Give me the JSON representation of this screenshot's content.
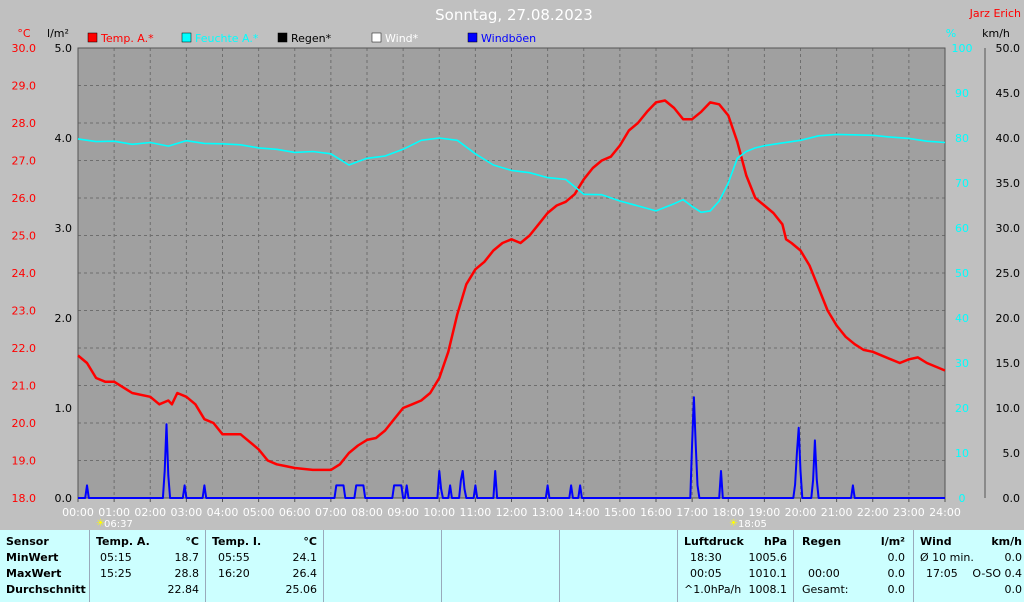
{
  "title": "Sonntag, 27.08.2023",
  "author": "Jarz Erich",
  "units": {
    "left_outer": "°C",
    "left_inner": "l/m²",
    "right_inner": "%",
    "right_outer": "km/h"
  },
  "legend": [
    {
      "label": "Temp. A.*",
      "color": "#ff0000"
    },
    {
      "label": "Feuchte A.*",
      "color": "#00ffff"
    },
    {
      "label": "Regen*",
      "color": "#000000"
    },
    {
      "label": "Wind*",
      "color": "#ffffff"
    },
    {
      "label": "Windböen",
      "color": "#0000ff"
    }
  ],
  "markers": {
    "sunrise": "06:37",
    "sunset": "18:05"
  },
  "chart_data": {
    "type": "line",
    "x_ticks": [
      "00:00",
      "01:00",
      "02:00",
      "03:00",
      "04:00",
      "05:00",
      "06:00",
      "07:00",
      "08:00",
      "09:00",
      "10:00",
      "11:00",
      "12:00",
      "13:00",
      "14:00",
      "15:00",
      "16:00",
      "17:00",
      "18:00",
      "19:00",
      "20:00",
      "21:00",
      "22:00",
      "23:00",
      "24:00"
    ],
    "axes": {
      "temp_c": {
        "ticks": [
          "18.0",
          "19.0",
          "20.0",
          "21.0",
          "22.0",
          "23.0",
          "24.0",
          "25.0",
          "26.0",
          "27.0",
          "28.0",
          "29.0",
          "30.0"
        ],
        "range": [
          18,
          30
        ]
      },
      "rain_lm2": {
        "ticks": [
          "0.0",
          "1.0",
          "2.0",
          "3.0",
          "4.0",
          "5.0"
        ],
        "range": [
          0,
          5
        ]
      },
      "humidity_pct": {
        "ticks": [
          "0",
          "10",
          "20",
          "30",
          "40",
          "50",
          "60",
          "70",
          "80",
          "90",
          "100"
        ],
        "range": [
          0,
          100
        ]
      },
      "wind_kmh": {
        "ticks": [
          "0.0",
          "5.0",
          "10.0",
          "15.0",
          "20.0",
          "25.0",
          "30.0",
          "35.0",
          "40.0",
          "45.0",
          "50.0"
        ],
        "range": [
          0,
          50
        ]
      }
    },
    "grid": true,
    "series": [
      {
        "name": "Temp. A.*",
        "color": "#ff0000",
        "axis": "temp_c",
        "points": [
          [
            0,
            21.8
          ],
          [
            0.25,
            21.6
          ],
          [
            0.5,
            21.2
          ],
          [
            0.75,
            21.1
          ],
          [
            1,
            21.1
          ],
          [
            1.5,
            20.8
          ],
          [
            2,
            20.7
          ],
          [
            2.25,
            20.5
          ],
          [
            2.5,
            20.6
          ],
          [
            2.6,
            20.5
          ],
          [
            2.75,
            20.8
          ],
          [
            3,
            20.7
          ],
          [
            3.25,
            20.5
          ],
          [
            3.5,
            20.1
          ],
          [
            3.75,
            20.0
          ],
          [
            4,
            19.7
          ],
          [
            4.5,
            19.7
          ],
          [
            4.75,
            19.5
          ],
          [
            5,
            19.3
          ],
          [
            5.25,
            19.0
          ],
          [
            5.5,
            18.9
          ],
          [
            5.75,
            18.85
          ],
          [
            6,
            18.8
          ],
          [
            6.5,
            18.75
          ],
          [
            7,
            18.75
          ],
          [
            7.25,
            18.9
          ],
          [
            7.5,
            19.2
          ],
          [
            7.75,
            19.4
          ],
          [
            8,
            19.55
          ],
          [
            8.25,
            19.6
          ],
          [
            8.5,
            19.8
          ],
          [
            8.75,
            20.1
          ],
          [
            9,
            20.4
          ],
          [
            9.25,
            20.5
          ],
          [
            9.5,
            20.6
          ],
          [
            9.75,
            20.8
          ],
          [
            10,
            21.2
          ],
          [
            10.25,
            21.9
          ],
          [
            10.5,
            22.9
          ],
          [
            10.75,
            23.7
          ],
          [
            11,
            24.1
          ],
          [
            11.25,
            24.3
          ],
          [
            11.5,
            24.6
          ],
          [
            11.75,
            24.8
          ],
          [
            12,
            24.9
          ],
          [
            12.25,
            24.8
          ],
          [
            12.5,
            25.0
          ],
          [
            12.75,
            25.3
          ],
          [
            13,
            25.6
          ],
          [
            13.25,
            25.8
          ],
          [
            13.5,
            25.9
          ],
          [
            13.75,
            26.1
          ],
          [
            14,
            26.5
          ],
          [
            14.25,
            26.8
          ],
          [
            14.5,
            27.0
          ],
          [
            14.75,
            27.1
          ],
          [
            15,
            27.4
          ],
          [
            15.25,
            27.8
          ],
          [
            15.5,
            28.0
          ],
          [
            15.75,
            28.3
          ],
          [
            16,
            28.55
          ],
          [
            16.25,
            28.6
          ],
          [
            16.5,
            28.4
          ],
          [
            16.75,
            28.1
          ],
          [
            17,
            28.1
          ],
          [
            17.25,
            28.3
          ],
          [
            17.5,
            28.55
          ],
          [
            17.75,
            28.5
          ],
          [
            18,
            28.2
          ],
          [
            18.25,
            27.5
          ],
          [
            18.5,
            26.6
          ],
          [
            18.75,
            26.0
          ],
          [
            19,
            25.8
          ],
          [
            19.25,
            25.6
          ],
          [
            19.5,
            25.3
          ],
          [
            19.6,
            24.9
          ],
          [
            19.75,
            24.8
          ],
          [
            20,
            24.6
          ],
          [
            20.25,
            24.2
          ],
          [
            20.5,
            23.6
          ],
          [
            20.75,
            23.0
          ],
          [
            21,
            22.6
          ],
          [
            21.25,
            22.3
          ],
          [
            21.5,
            22.1
          ],
          [
            21.75,
            21.95
          ],
          [
            22,
            21.9
          ],
          [
            22.5,
            21.7
          ],
          [
            22.75,
            21.6
          ],
          [
            23,
            21.7
          ],
          [
            23.25,
            21.75
          ],
          [
            23.5,
            21.6
          ],
          [
            24,
            21.4
          ]
        ]
      },
      {
        "name": "Feuchte A.*",
        "color": "#00ffff",
        "axis": "humidity_pct",
        "points": [
          [
            0,
            79.8
          ],
          [
            0.5,
            79.2
          ],
          [
            1,
            79.3
          ],
          [
            1.5,
            78.6
          ],
          [
            2,
            79.0
          ],
          [
            2.5,
            78.2
          ],
          [
            3,
            79.4
          ],
          [
            3.5,
            78.8
          ],
          [
            4,
            78.7
          ],
          [
            4.5,
            78.5
          ],
          [
            5,
            77.8
          ],
          [
            5.5,
            77.5
          ],
          [
            6,
            76.8
          ],
          [
            6.5,
            77.0
          ],
          [
            7,
            76.5
          ],
          [
            7.5,
            74.0
          ],
          [
            8,
            75.5
          ],
          [
            8.5,
            76.0
          ],
          [
            9,
            77.5
          ],
          [
            9.5,
            79.5
          ],
          [
            10,
            80.0
          ],
          [
            10.5,
            79.5
          ],
          [
            11,
            76.5
          ],
          [
            11.5,
            74.0
          ],
          [
            12,
            72.8
          ],
          [
            12.5,
            72.3
          ],
          [
            13,
            71.2
          ],
          [
            13.5,
            70.8
          ],
          [
            14,
            67.5
          ],
          [
            14.5,
            67.4
          ],
          [
            15,
            66.0
          ],
          [
            15.5,
            64.9
          ],
          [
            16,
            63.8
          ],
          [
            16.5,
            65.4
          ],
          [
            16.75,
            66.3
          ],
          [
            17,
            64.8
          ],
          [
            17.25,
            63.5
          ],
          [
            17.5,
            63.8
          ],
          [
            17.75,
            66.0
          ],
          [
            18,
            70.0
          ],
          [
            18.25,
            75.5
          ],
          [
            18.5,
            77.0
          ],
          [
            18.75,
            77.8
          ],
          [
            19,
            78.3
          ],
          [
            19.5,
            78.9
          ],
          [
            20,
            79.5
          ],
          [
            20.5,
            80.5
          ],
          [
            21,
            80.8
          ],
          [
            22,
            80.6
          ],
          [
            22.5,
            80.2
          ],
          [
            23,
            79.9
          ],
          [
            23.5,
            79.3
          ],
          [
            24,
            79.0
          ]
        ]
      },
      {
        "name": "Windböen",
        "color": "#0000ff",
        "axis": "wind_kmh",
        "points": [
          [
            0,
            0
          ],
          [
            0.2,
            0
          ],
          [
            0.25,
            1.4
          ],
          [
            0.3,
            0
          ],
          [
            2.35,
            0
          ],
          [
            2.4,
            3.0
          ],
          [
            2.45,
            8.2
          ],
          [
            2.5,
            2.5
          ],
          [
            2.55,
            0
          ],
          [
            2.9,
            0
          ],
          [
            2.95,
            1.4
          ],
          [
            3.0,
            0
          ],
          [
            3.45,
            0
          ],
          [
            3.5,
            1.4
          ],
          [
            3.55,
            0
          ],
          [
            7.1,
            0
          ],
          [
            7.15,
            1.4
          ],
          [
            7.35,
            1.4
          ],
          [
            7.4,
            0
          ],
          [
            7.65,
            0
          ],
          [
            7.7,
            1.4
          ],
          [
            7.9,
            1.4
          ],
          [
            7.95,
            0
          ],
          [
            8.7,
            0
          ],
          [
            8.75,
            1.4
          ],
          [
            8.95,
            1.4
          ],
          [
            9.0,
            0
          ],
          [
            9.05,
            0
          ],
          [
            9.1,
            1.4
          ],
          [
            9.15,
            0
          ],
          [
            9.95,
            0
          ],
          [
            10.0,
            3.0
          ],
          [
            10.05,
            1.0
          ],
          [
            10.1,
            0
          ],
          [
            10.25,
            0
          ],
          [
            10.3,
            1.4
          ],
          [
            10.35,
            0
          ],
          [
            10.55,
            0
          ],
          [
            10.6,
            2.0
          ],
          [
            10.65,
            3.0
          ],
          [
            10.7,
            1.0
          ],
          [
            10.75,
            0
          ],
          [
            10.95,
            0
          ],
          [
            11.0,
            1.4
          ],
          [
            11.05,
            0
          ],
          [
            11.5,
            0
          ],
          [
            11.55,
            3.0
          ],
          [
            11.6,
            0
          ],
          [
            12.95,
            0
          ],
          [
            13.0,
            1.4
          ],
          [
            13.05,
            0
          ],
          [
            13.6,
            0
          ],
          [
            13.65,
            1.4
          ],
          [
            13.7,
            0
          ],
          [
            13.85,
            0
          ],
          [
            13.9,
            1.4
          ],
          [
            13.95,
            0
          ],
          [
            16.95,
            0
          ],
          [
            17.0,
            6.0
          ],
          [
            17.05,
            11.2
          ],
          [
            17.1,
            6.0
          ],
          [
            17.15,
            1.4
          ],
          [
            17.2,
            0
          ],
          [
            17.75,
            0
          ],
          [
            17.8,
            3.0
          ],
          [
            17.85,
            0
          ],
          [
            19.8,
            0
          ],
          [
            19.85,
            1.5
          ],
          [
            19.9,
            5.0
          ],
          [
            19.95,
            7.8
          ],
          [
            20.0,
            3.0
          ],
          [
            20.05,
            0
          ],
          [
            20.3,
            0
          ],
          [
            20.35,
            2.0
          ],
          [
            20.4,
            6.4
          ],
          [
            20.45,
            2.0
          ],
          [
            20.5,
            0
          ],
          [
            21.4,
            0
          ],
          [
            21.45,
            1.4
          ],
          [
            21.5,
            0
          ],
          [
            24,
            0
          ]
        ]
      }
    ]
  },
  "stats": {
    "sensor": {
      "header": "Sensor",
      "rows": [
        "MinWert",
        "MaxWert",
        "Durchschnitt"
      ]
    },
    "temp_a": {
      "header": "Temp. A.",
      "unit": "°C",
      "min_time": "05:15",
      "min_val": "18.7",
      "max_time": "15:25",
      "max_val": "28.8",
      "avg": "22.84"
    },
    "temp_i": {
      "header": "Temp. I.",
      "unit": "°C",
      "min_time": "05:55",
      "min_val": "24.1",
      "max_time": "16:20",
      "max_val": "26.4",
      "avg": "25.06"
    },
    "pressure": {
      "header": "Luftdruck",
      "unit": "hPa",
      "row1_label": "18:30",
      "row1_val": "1005.6",
      "row2_label": "00:05",
      "row2_val": "1010.1",
      "row3_label": "^1.0hPa/h",
      "row3_val": "1008.1"
    },
    "rain": {
      "header": "Regen",
      "unit": "l/m²",
      "row2_label": "00:00",
      "row2_val": "0.0",
      "row3_label": "Gesamt:",
      "row3_val": "0.0",
      "row1_val": "0.0"
    },
    "wind": {
      "header": "Wind",
      "unit": "km/h",
      "row1_label": "Ø 10 min.",
      "row1_val": "0.0",
      "row2_label": "17:05",
      "row2_val": "O-SO 0.4",
      "row3_val": "0.0"
    }
  }
}
